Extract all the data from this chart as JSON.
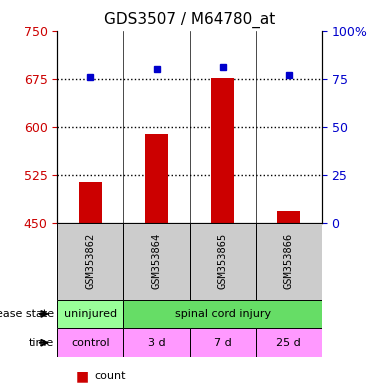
{
  "title": "GDS3507 / M64780_at",
  "samples": [
    "GSM353862",
    "GSM353864",
    "GSM353865",
    "GSM353866"
  ],
  "count_values": [
    513,
    588,
    676,
    468
  ],
  "percentile_values": [
    76,
    80,
    81,
    77
  ],
  "ylim_left": [
    450,
    750
  ],
  "yticks_left": [
    450,
    525,
    600,
    675,
    750
  ],
  "ylim_right": [
    0,
    100
  ],
  "yticks_right": [
    0,
    25,
    50,
    75,
    100
  ],
  "ytick_right_labels": [
    "0",
    "25",
    "50",
    "75",
    "100%"
  ],
  "bar_color": "#cc0000",
  "dot_color": "#0000cc",
  "left_tick_color": "#cc0000",
  "right_tick_color": "#0000cc",
  "disease_state": [
    "uninjured",
    "spinal cord injury",
    "spinal cord injury",
    "spinal cord injury"
  ],
  "disease_state_uninjured_color": "#99ff99",
  "disease_state_injury_color": "#66dd66",
  "time_labels": [
    "control",
    "3 d",
    "7 d",
    "25 d"
  ],
  "time_color": "#ff99ff",
  "sample_box_color": "#cccccc",
  "legend_count_color": "#cc0000",
  "legend_pct_color": "#0000cc",
  "dotted_line_color": "#000000",
  "base_value": 450
}
